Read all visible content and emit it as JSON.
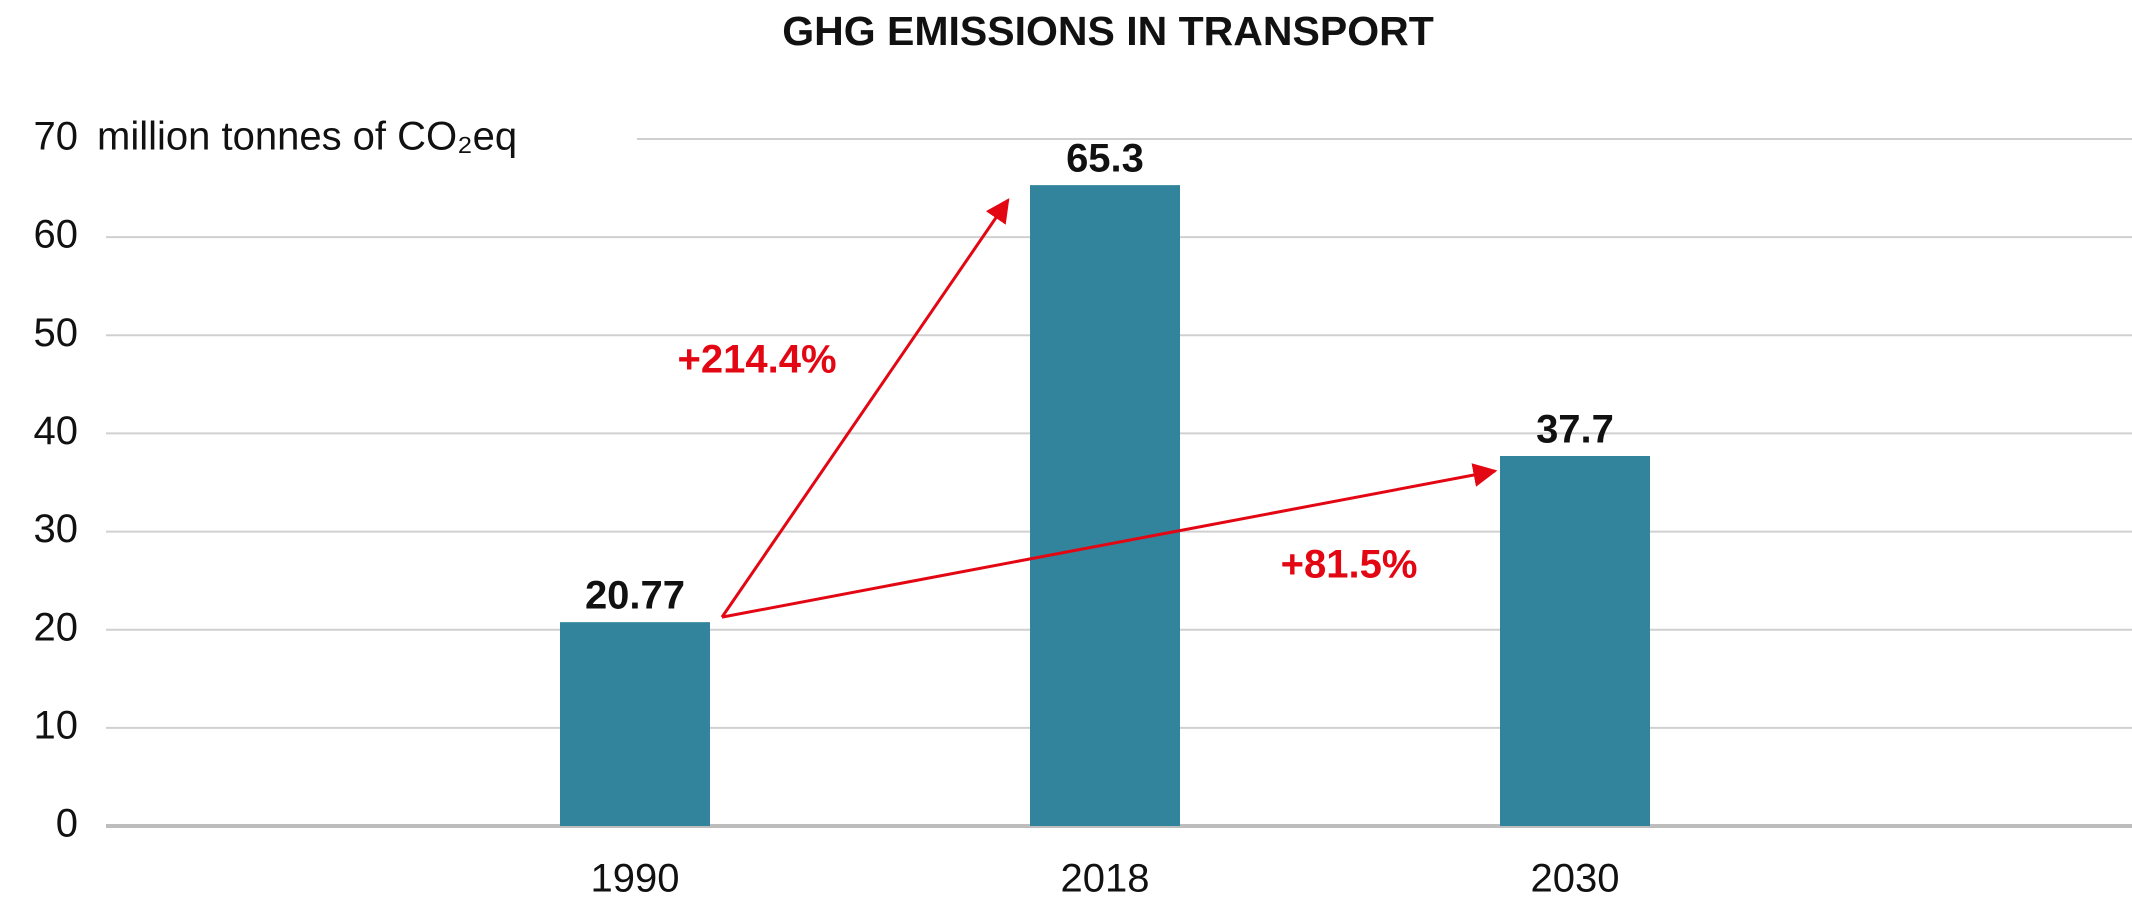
{
  "chart_data": {
    "type": "bar",
    "title": "GHG EMISSIONS IN TRANSPORT",
    "y_label": "million tonnes of CO₂eq",
    "categories": [
      "1990",
      "2018",
      "2030"
    ],
    "values": [
      20.77,
      65.3,
      37.7
    ],
    "color": "#31849b",
    "ylim": [
      0,
      70
    ],
    "yticks": [
      0,
      10,
      20,
      30,
      40,
      50,
      60,
      70
    ],
    "grid": true,
    "annotations": [
      {
        "text": "+214.4%",
        "color": "#e30613"
      },
      {
        "text": "+81.5%",
        "color": "#e30613"
      }
    ]
  }
}
